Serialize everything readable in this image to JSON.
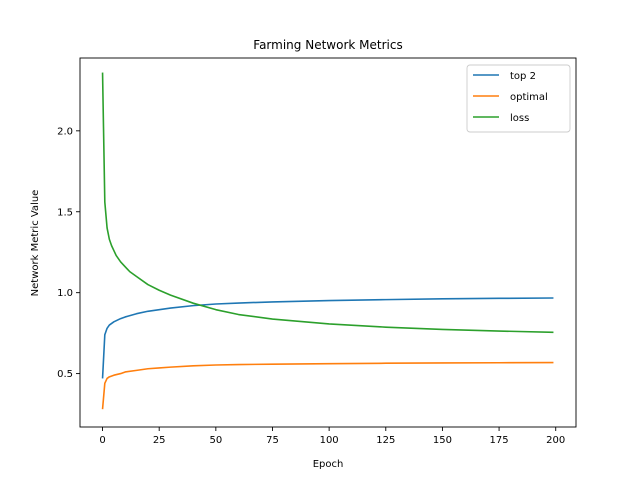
{
  "chart_data": {
    "type": "line",
    "title": "Farming Network Metrics",
    "xlabel": "Epoch",
    "ylabel": "Network Metric Value",
    "xlim": [
      -9.95,
      208.95
    ],
    "ylim": [
      0.17,
      2.45
    ],
    "xticks": [
      0,
      25,
      50,
      75,
      100,
      125,
      150,
      175,
      200
    ],
    "yticks": [
      0.5,
      1.0,
      1.5,
      2.0
    ],
    "xtick_labels": [
      "0",
      "25",
      "50",
      "75",
      "100",
      "125",
      "150",
      "175",
      "200"
    ],
    "ytick_labels": [
      "0.5",
      "1.0",
      "1.5",
      "2.0"
    ],
    "grid": false,
    "legend_position": "top-right",
    "series": [
      {
        "name": "top 2",
        "color": "#1f77b4",
        "x": [
          0,
          1,
          2,
          3,
          5,
          8,
          10,
          15,
          20,
          25,
          30,
          40,
          50,
          60,
          75,
          100,
          125,
          150,
          175,
          199
        ],
        "y": [
          0.47,
          0.74,
          0.78,
          0.8,
          0.82,
          0.84,
          0.85,
          0.87,
          0.885,
          0.895,
          0.905,
          0.92,
          0.93,
          0.936,
          0.943,
          0.951,
          0.957,
          0.962,
          0.965,
          0.967
        ]
      },
      {
        "name": "optimal",
        "color": "#ff7f0e",
        "x": [
          0,
          1,
          2,
          3,
          5,
          8,
          10,
          15,
          20,
          25,
          30,
          40,
          50,
          60,
          75,
          100,
          125,
          150,
          175,
          199
        ],
        "y": [
          0.28,
          0.44,
          0.47,
          0.48,
          0.49,
          0.5,
          0.51,
          0.52,
          0.53,
          0.535,
          0.54,
          0.548,
          0.553,
          0.556,
          0.558,
          0.561,
          0.564,
          0.566,
          0.567,
          0.568
        ]
      },
      {
        "name": "loss",
        "color": "#2ca02c",
        "x": [
          0,
          1,
          2,
          3,
          4,
          5,
          6,
          8,
          10,
          12,
          15,
          20,
          25,
          30,
          40,
          50,
          60,
          75,
          100,
          125,
          150,
          175,
          199
        ],
        "y": [
          2.36,
          1.56,
          1.4,
          1.33,
          1.29,
          1.26,
          1.23,
          1.19,
          1.16,
          1.13,
          1.1,
          1.05,
          1.015,
          0.985,
          0.935,
          0.895,
          0.865,
          0.837,
          0.807,
          0.787,
          0.773,
          0.763,
          0.755
        ]
      }
    ]
  }
}
